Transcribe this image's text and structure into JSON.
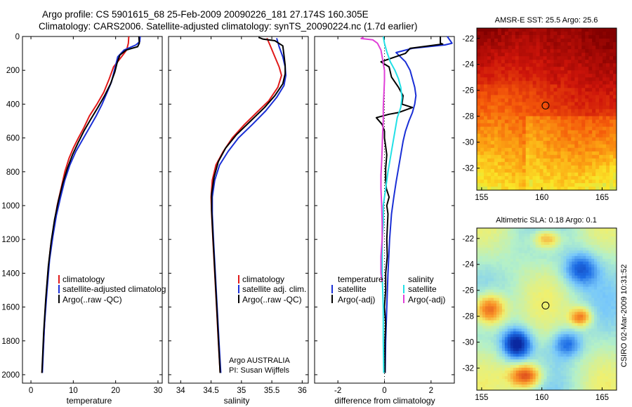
{
  "header": {
    "line1": "Argo profile: CS 5901615_68 25-Feb-2009 20090226_181 27.174S 160.305E",
    "line2": "Climatology: CARS2006. Satellite-adjusted climatology: synTS_20090224.nc (1.7d earlier)"
  },
  "colors": {
    "climatology": "#e01a1a",
    "satellite": "#1a2fd6",
    "argo": "#000000",
    "temp_diff": "#1a2fd6",
    "sat_sal": "#22e0e6",
    "argo_sal": "#e040d8"
  },
  "chart_data": [
    {
      "id": "temperature",
      "type": "line",
      "xlabel": "temperature",
      "ylabel": "",
      "xlim": [
        -2,
        31
      ],
      "ylim": [
        2050,
        0
      ],
      "xticks": [
        0,
        10,
        20,
        30
      ],
      "yticks": [
        0,
        200,
        400,
        600,
        800,
        1000,
        1200,
        1400,
        1600,
        1800,
        2000
      ],
      "legend": [
        "climatology",
        "satellite-adjusted climatolog",
        "Argo(..raw -QC)"
      ],
      "series": [
        {
          "name": "climatology",
          "color": "#e01a1a",
          "points": [
            [
              23.1,
              0
            ],
            [
              23.0,
              40
            ],
            [
              22.6,
              80
            ],
            [
              21.4,
              120
            ],
            [
              19.5,
              180
            ],
            [
              18.5,
              250
            ],
            [
              17.2,
              330
            ],
            [
              15.6,
              400
            ],
            [
              13.8,
              470
            ],
            [
              12.5,
              540
            ],
            [
              11.2,
              600
            ],
            [
              10.0,
              660
            ],
            [
              9.0,
              720
            ],
            [
              8.0,
              800
            ],
            [
              7.1,
              900
            ],
            [
              6.2,
              1000
            ],
            [
              5.4,
              1120
            ],
            [
              4.6,
              1250
            ],
            [
              4.0,
              1400
            ],
            [
              3.4,
              1600
            ],
            [
              3.0,
              1800
            ],
            [
              2.6,
              1990
            ]
          ]
        },
        {
          "name": "satellite",
          "color": "#1a2fd6",
          "points": [
            [
              25.8,
              0
            ],
            [
              25.7,
              30
            ],
            [
              24.8,
              50
            ],
            [
              22.0,
              80
            ],
            [
              20.5,
              120
            ],
            [
              20.0,
              170
            ],
            [
              19.5,
              220
            ],
            [
              19.0,
              270
            ],
            [
              18.0,
              330
            ],
            [
              16.8,
              400
            ],
            [
              15.4,
              470
            ],
            [
              13.8,
              540
            ],
            [
              12.2,
              610
            ],
            [
              10.6,
              680
            ],
            [
              9.2,
              760
            ],
            [
              8.0,
              850
            ],
            [
              7.0,
              950
            ],
            [
              6.0,
              1060
            ],
            [
              5.2,
              1180
            ],
            [
              4.4,
              1320
            ],
            [
              3.8,
              1500
            ],
            [
              3.2,
              1700
            ],
            [
              2.7,
              1990
            ]
          ]
        },
        {
          "name": "argo",
          "color": "#000000",
          "points": [
            [
              25.5,
              0
            ],
            [
              25.6,
              40
            ],
            [
              25.2,
              60
            ],
            [
              22.5,
              80
            ],
            [
              21.0,
              110
            ],
            [
              20.3,
              160
            ],
            [
              19.8,
              210
            ],
            [
              18.8,
              280
            ],
            [
              17.4,
              350
            ],
            [
              15.8,
              420
            ],
            [
              14.1,
              490
            ],
            [
              12.5,
              560
            ],
            [
              11.1,
              630
            ],
            [
              9.8,
              700
            ],
            [
              8.6,
              780
            ],
            [
              7.5,
              870
            ],
            [
              6.5,
              970
            ],
            [
              5.6,
              1080
            ],
            [
              4.8,
              1210
            ],
            [
              4.1,
              1360
            ],
            [
              3.5,
              1550
            ],
            [
              3.0,
              1750
            ],
            [
              2.6,
              1990
            ]
          ]
        }
      ]
    },
    {
      "id": "salinity",
      "type": "line",
      "xlabel": "salinity",
      "ylabel": "",
      "xlim": [
        33.8,
        36.1
      ],
      "ylim": [
        2050,
        0
      ],
      "xticks": [
        34,
        34.5,
        35,
        35.5,
        36
      ],
      "legend": [
        "climatology",
        "satellite adj. clim.",
        "Argo(..raw -QC)"
      ],
      "annotation": [
        "Argo AUSTRALIA",
        "PI: Susan Wijffels"
      ],
      "series": [
        {
          "name": "climatology",
          "color": "#e01a1a",
          "points": [
            [
              35.42,
              10
            ],
            [
              35.48,
              60
            ],
            [
              35.55,
              120
            ],
            [
              35.62,
              180
            ],
            [
              35.66,
              230
            ],
            [
              35.6,
              300
            ],
            [
              35.45,
              380
            ],
            [
              35.25,
              450
            ],
            [
              35.05,
              520
            ],
            [
              34.85,
              600
            ],
            [
              34.7,
              680
            ],
            [
              34.58,
              760
            ],
            [
              34.52,
              850
            ],
            [
              34.5,
              950
            ],
            [
              34.51,
              1050
            ],
            [
              34.53,
              1200
            ],
            [
              34.56,
              1400
            ],
            [
              34.59,
              1600
            ],
            [
              34.62,
              1800
            ],
            [
              34.65,
              1990
            ]
          ]
        },
        {
          "name": "satellite",
          "color": "#1a2fd6",
          "points": [
            [
              35.58,
              10
            ],
            [
              35.62,
              60
            ],
            [
              35.68,
              120
            ],
            [
              35.72,
              180
            ],
            [
              35.73,
              230
            ],
            [
              35.7,
              290
            ],
            [
              35.58,
              360
            ],
            [
              35.4,
              440
            ],
            [
              35.18,
              520
            ],
            [
              34.95,
              600
            ],
            [
              34.78,
              680
            ],
            [
              34.64,
              760
            ],
            [
              34.56,
              850
            ],
            [
              34.52,
              950
            ],
            [
              34.52,
              1050
            ],
            [
              34.54,
              1200
            ],
            [
              34.57,
              1400
            ],
            [
              34.6,
              1600
            ],
            [
              34.63,
              1800
            ],
            [
              34.66,
              1990
            ]
          ]
        },
        {
          "name": "argo",
          "color": "#000000",
          "points": [
            [
              35.28,
              5
            ],
            [
              35.35,
              15
            ],
            [
              35.55,
              25
            ],
            [
              35.68,
              55
            ],
            [
              35.7,
              110
            ],
            [
              35.72,
              170
            ],
            [
              35.72,
              220
            ],
            [
              35.68,
              280
            ],
            [
              35.55,
              350
            ],
            [
              35.38,
              420
            ],
            [
              35.15,
              500
            ],
            [
              34.92,
              580
            ],
            [
              34.74,
              660
            ],
            [
              34.62,
              740
            ],
            [
              34.55,
              830
            ],
            [
              34.51,
              930
            ],
            [
              34.51,
              1030
            ],
            [
              34.53,
              1180
            ],
            [
              34.56,
              1380
            ],
            [
              34.59,
              1580
            ],
            [
              34.62,
              1780
            ],
            [
              34.65,
              1990
            ]
          ]
        }
      ]
    },
    {
      "id": "difference",
      "type": "line",
      "xlabel": "difference from climatology",
      "ylabel": "",
      "xlim": [
        -3.0,
        3.0
      ],
      "ylim": [
        2050,
        0
      ],
      "xticks": [
        -2,
        0,
        2
      ],
      "zero_line": 0,
      "legend_left_title": "temperature",
      "legend_right_title": "salinity",
      "legend": [
        "satellite",
        "Argo(-adj)",
        "satellite",
        "Argo(-adj)"
      ],
      "series": [
        {
          "name": "temperature satellite",
          "color": "#1a2fd6",
          "points": [
            [
              2.7,
              0
            ],
            [
              2.9,
              40
            ],
            [
              2.6,
              50
            ],
            [
              1.2,
              70
            ],
            [
              0.5,
              95
            ],
            [
              0.9,
              150
            ],
            [
              1.1,
              200
            ],
            [
              1.2,
              250
            ],
            [
              1.3,
              300
            ],
            [
              1.35,
              350
            ],
            [
              1.3,
              400
            ],
            [
              1.2,
              450
            ],
            [
              1.05,
              500
            ],
            [
              0.9,
              560
            ],
            [
              0.8,
              620
            ],
            [
              0.7,
              700
            ],
            [
              0.6,
              780
            ],
            [
              0.5,
              860
            ],
            [
              0.4,
              950
            ],
            [
              0.3,
              1050
            ],
            [
              0.22,
              1200
            ],
            [
              0.15,
              1400
            ],
            [
              0.1,
              1600
            ],
            [
              0.05,
              1800
            ],
            [
              0.03,
              1990
            ]
          ]
        },
        {
          "name": "temperature Argo(-adj)",
          "color": "#000000",
          "points": [
            [
              2.4,
              0
            ],
            [
              2.4,
              40
            ],
            [
              2.5,
              45
            ],
            [
              1.1,
              70
            ],
            [
              0.9,
              100
            ],
            [
              -0.15,
              150
            ],
            [
              0.2,
              180
            ],
            [
              0.3,
              240
            ],
            [
              0.6,
              300
            ],
            [
              0.8,
              350
            ],
            [
              0.75,
              400
            ],
            [
              1.2,
              420
            ],
            [
              0.6,
              450
            ],
            [
              0.2,
              460
            ],
            [
              -0.35,
              480
            ],
            [
              -0.1,
              520
            ],
            [
              0.0,
              560
            ],
            [
              0.0,
              600
            ],
            [
              0.05,
              650
            ],
            [
              0.1,
              700
            ],
            [
              0.05,
              780
            ],
            [
              0.05,
              850
            ],
            [
              0.08,
              900
            ],
            [
              0.2,
              950
            ],
            [
              0.1,
              1000
            ],
            [
              0.15,
              1050
            ],
            [
              0.1,
              1200
            ],
            [
              0.12,
              1300
            ],
            [
              0.05,
              1400
            ],
            [
              0.05,
              1500
            ],
            [
              0.0,
              1600
            ],
            [
              0.05,
              1700
            ],
            [
              0.02,
              1800
            ],
            [
              0.02,
              1990
            ]
          ]
        },
        {
          "name": "salinity satellite",
          "color": "#22e0e6",
          "points": [
            [
              -0.05,
              0
            ],
            [
              0.0,
              40
            ],
            [
              0.1,
              90
            ],
            [
              0.25,
              150
            ],
            [
              0.45,
              200
            ],
            [
              0.6,
              250
            ],
            [
              0.7,
              300
            ],
            [
              0.75,
              360
            ],
            [
              0.7,
              420
            ],
            [
              0.55,
              480
            ],
            [
              0.45,
              560
            ],
            [
              0.35,
              640
            ],
            [
              0.25,
              720
            ],
            [
              0.15,
              800
            ],
            [
              0.05,
              900
            ],
            [
              -0.05,
              1000
            ],
            [
              -0.05,
              1100
            ],
            [
              -0.1,
              1200
            ],
            [
              -0.1,
              1400
            ],
            [
              -0.05,
              1600
            ],
            [
              -0.05,
              1800
            ],
            [
              -0.03,
              1990
            ]
          ]
        },
        {
          "name": "salinity Argo(-adj)",
          "color": "#e040d8",
          "points": [
            [
              -0.9,
              5
            ],
            [
              -1.0,
              12
            ],
            [
              -0.5,
              20
            ],
            [
              -0.3,
              40
            ],
            [
              -0.15,
              80
            ],
            [
              -0.1,
              120
            ],
            [
              -0.05,
              160
            ],
            [
              0.0,
              200
            ],
            [
              0.0,
              260
            ],
            [
              -0.02,
              330
            ],
            [
              -0.05,
              420
            ],
            [
              -0.05,
              500
            ],
            [
              -0.08,
              580
            ],
            [
              -0.1,
              660
            ],
            [
              -0.12,
              740
            ],
            [
              -0.15,
              820
            ],
            [
              -0.15,
              900
            ],
            [
              -0.12,
              1000
            ],
            [
              -0.1,
              1100
            ],
            [
              -0.1,
              1200
            ],
            [
              -0.15,
              1300
            ],
            [
              -0.15,
              1400
            ],
            [
              -0.1,
              1450
            ]
          ]
        }
      ]
    }
  ],
  "maps": [
    {
      "id": "sst",
      "title": "AMSR-E SST: 25.5  Argo: 25.6",
      "type": "heatmap",
      "lon_range": [
        154.6,
        166.2
      ],
      "lat_range": [
        -33.7,
        -21.2
      ],
      "xticks": [
        155,
        160,
        165
      ],
      "yticks": [
        -22,
        -24,
        -26,
        -28,
        -30,
        -32
      ],
      "argo_marker": {
        "lon": 160.305,
        "lat": -27.174
      }
    },
    {
      "id": "sla",
      "title": "Altimetric SLA: 0.18  Argo: 0.1",
      "type": "heatmap",
      "lon_range": [
        154.6,
        166.2
      ],
      "lat_range": [
        -33.7,
        -21.2
      ],
      "xticks": [
        155,
        160,
        165
      ],
      "yticks": [
        -22,
        -24,
        -26,
        -28,
        -30,
        -32
      ],
      "argo_marker": {
        "lon": 160.305,
        "lat": -27.174
      }
    }
  ],
  "footer": {
    "stamp": "CSIRO 02-Mar-2009 10:31:52"
  }
}
